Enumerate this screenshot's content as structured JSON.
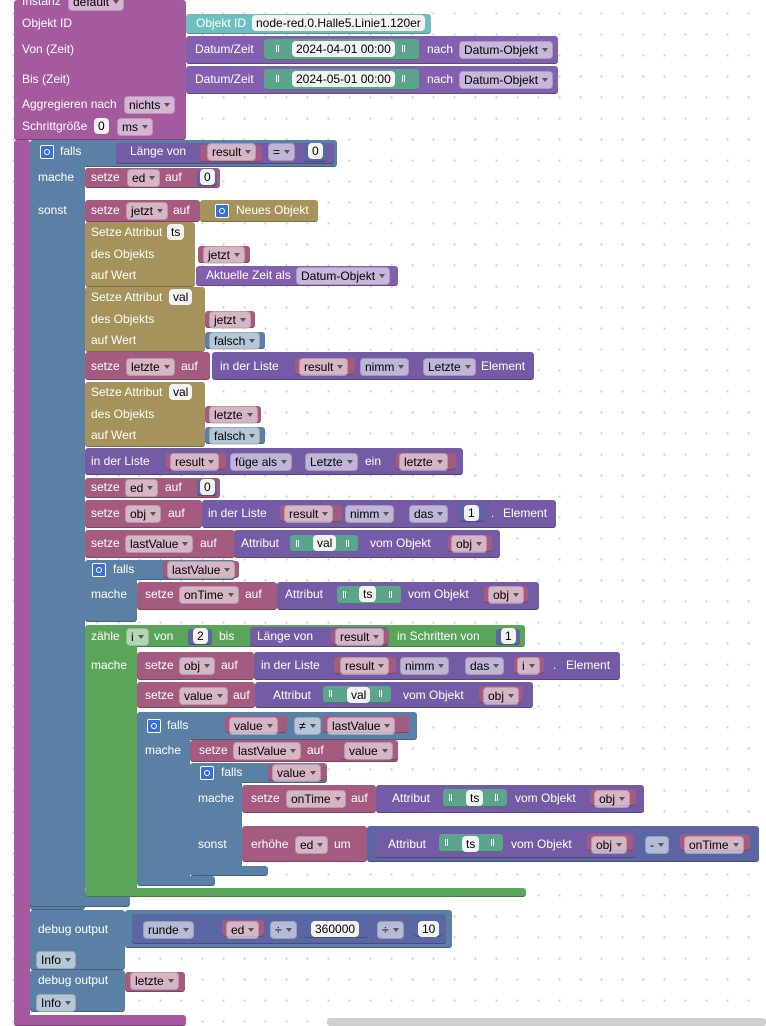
{
  "rows": [
    [
      "Instanz",
      "default"
    ],
    [
      "Objekt ID",
      "Objekt ID",
      "node-red.0.Halle5.Linie1.120er"
    ],
    [
      "Von (Zeit)",
      "Datum/Zeit",
      "2024-04-01 00:00",
      "nach",
      "Datum-Objekt"
    ],
    [
      "Bis (Zeit)",
      "Datum/Zeit",
      "2024-05-01 00:00",
      "nach",
      "Datum-Objekt"
    ],
    [
      "Aggregieren nach",
      "nichts"
    ],
    [
      "Schrittgröße",
      "0",
      "ms"
    ],
    [
      "falls",
      "Länge von",
      "result",
      "=",
      "0"
    ],
    [
      "mache",
      "setze",
      "ed",
      "auf",
      "0"
    ],
    [
      "sonst",
      "setze",
      "jetzt",
      "auf",
      "Neues Objekt"
    ],
    [
      "Setze Attribut",
      "ts"
    ],
    [
      "des Objekts",
      "jetzt"
    ],
    [
      "auf Wert",
      "Aktuelle Zeit als",
      "Datum-Objekt"
    ],
    [
      "Setze Attribut",
      "val"
    ],
    [
      "des Objekts",
      "jetzt"
    ],
    [
      "auf Wert",
      "falsch"
    ],
    [
      "setze",
      "letzte",
      "auf",
      "in der Liste",
      "result",
      "nimm",
      "Letzte",
      "Element"
    ],
    [
      "Setze Attribut",
      "val"
    ],
    [
      "des Objekts",
      "letzte"
    ],
    [
      "auf Wert",
      "falsch"
    ],
    [
      "in der Liste",
      "result",
      "füge als",
      "Letzte",
      "ein",
      "letzte"
    ],
    [
      "setze",
      "ed",
      "auf",
      "0"
    ],
    [
      "setze",
      "obj",
      "auf",
      "in der Liste",
      "result",
      "nimm",
      "das",
      "1",
      ".",
      "Element"
    ],
    [
      "setze",
      "lastValue",
      "auf",
      "Attribut",
      "val",
      "vom Objekt",
      "obj"
    ],
    [
      "falls",
      "lastValue"
    ],
    [
      "mache",
      "setze",
      "onTime",
      "auf",
      "Attribut",
      "ts",
      "vom Objekt",
      "obj"
    ],
    [
      "zähle",
      "i",
      "von",
      "2",
      "bis",
      "Länge von",
      "result",
      "in Schritten von",
      "1"
    ],
    [
      "mache",
      "setze",
      "obj",
      "auf",
      "in der Liste",
      "result",
      "nimm",
      "das",
      "i",
      ".",
      "Element"
    ],
    [
      "setze",
      "value",
      "auf",
      "Attribut",
      "val",
      "vom Objekt",
      "obj"
    ],
    [
      "falls",
      "value",
      "≠",
      "lastValue"
    ],
    [
      "mache",
      "setze",
      "lastValue",
      "auf",
      "value"
    ],
    [
      "falls",
      "value"
    ],
    [
      "mache",
      "setze",
      "onTime",
      "auf",
      "Attribut",
      "ts",
      "vom Objekt",
      "obj"
    ],
    [
      "sonst",
      "erhöhe",
      "ed",
      "um",
      "Attribut",
      "ts",
      "vom Objekt",
      "obj",
      "-",
      "onTime"
    ],
    [
      "debug output",
      "runde",
      "ed",
      "÷",
      "360000",
      "÷",
      "10"
    ],
    [
      "Info"
    ],
    [
      "debug output",
      "letzte"
    ],
    [
      "Info"
    ]
  ]
}
